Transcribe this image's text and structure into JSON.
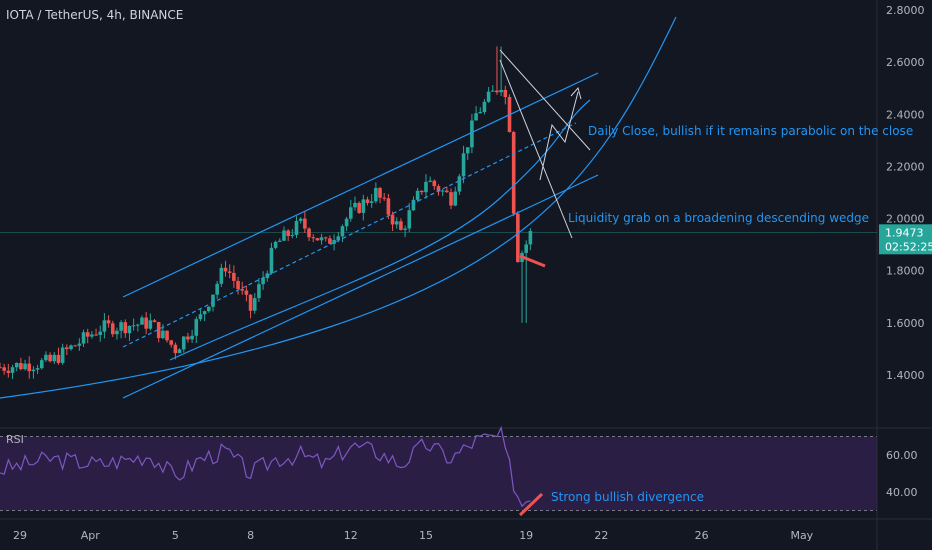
{
  "colors": {
    "background": "#131722",
    "up": "#26a69a",
    "down": "#ef5350",
    "drawing": "#2196f3",
    "annotation_text": "#2196f3",
    "axis_text": "#b2b5be",
    "rsi_line": "#7e57c2",
    "rsi_band": "#2a1e45",
    "price_tag": "#26a69a",
    "white_lines": "#d1d4dc"
  },
  "chart_data": [
    {
      "type": "candlestick",
      "title": "IOTA / TetherUS, 4h, BINANCE",
      "yticks": [
        "2.8000",
        "2.6000",
        "2.4000",
        "2.2000",
        "2.0000",
        "1.8000",
        "1.6000",
        "1.4000"
      ],
      "ytick_values": [
        2.8,
        2.6,
        2.4,
        2.2,
        2.0,
        1.8,
        1.6,
        1.4
      ],
      "ylim": [
        1.2,
        2.8
      ],
      "xticks": [
        "29",
        "Apr",
        "5",
        "8",
        "12",
        "15",
        "19",
        "22",
        "26",
        "May"
      ],
      "xtick_days": [
        -2.2,
        0.6,
        4,
        7,
        11,
        14,
        18,
        21,
        25,
        29
      ],
      "xlim": [
        -3,
        32
      ],
      "last_price": "1.9473",
      "countdown": "02:52:25",
      "anchors_day": [
        -3,
        -1,
        1,
        3,
        4,
        5,
        6,
        7,
        8,
        9,
        10,
        11,
        12,
        13,
        14,
        15,
        16,
        17,
        17.3,
        17.6,
        17.9,
        18.2
      ],
      "anchors_price": [
        1.43,
        1.45,
        1.58,
        1.6,
        1.5,
        1.62,
        1.82,
        1.65,
        1.9,
        1.98,
        1.9,
        2.02,
        2.1,
        1.95,
        2.15,
        2.08,
        2.4,
        2.52,
        2.42,
        1.85,
        1.88,
        1.95
      ],
      "annotations": [
        "Daily Close, bullish if it remains parabolic on the close",
        "Liquidity grab on a broadening descending wedge"
      ]
    },
    {
      "type": "line",
      "name": "RSI",
      "yticks": [
        "60.00",
        "40.00"
      ],
      "ytick_values": [
        60,
        40
      ],
      "ylim": [
        20,
        80
      ],
      "band": [
        30,
        70
      ],
      "anchors_day": [
        -3,
        -1,
        1,
        3,
        4,
        5,
        6,
        7,
        8,
        9,
        10,
        11,
        12,
        13,
        14,
        15,
        16,
        17,
        17.5,
        17.8,
        18.2
      ],
      "anchors_value": [
        52,
        58,
        55,
        60,
        48,
        58,
        62,
        50,
        58,
        60,
        55,
        65,
        62,
        55,
        66,
        58,
        68,
        70,
        45,
        33,
        40
      ],
      "annotations": [
        "Strong bullish divergence"
      ]
    }
  ]
}
